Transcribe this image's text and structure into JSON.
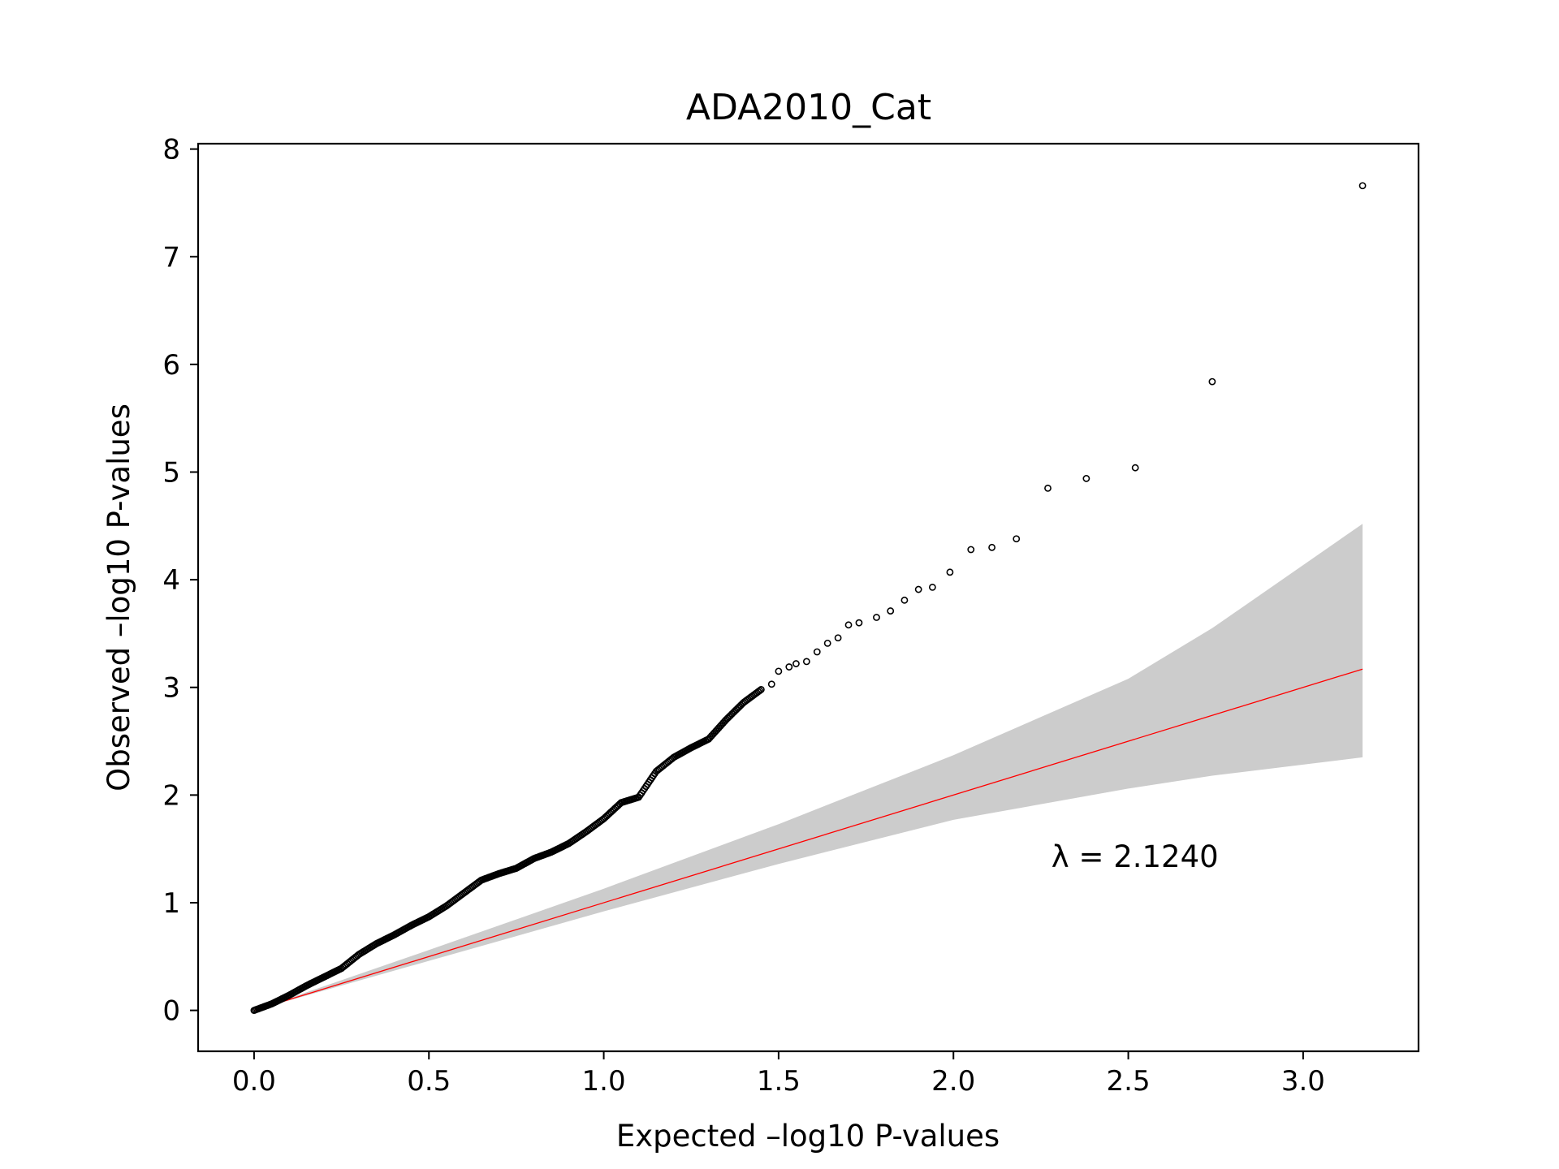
{
  "chart_data": {
    "type": "scatter",
    "title": "ADA2010_Cat",
    "xlabel": "Expected –log10 P-values",
    "ylabel": "Observed –log10 P-values",
    "xlim": [
      -0.16,
      3.33
    ],
    "ylim": [
      -0.38,
      8.05
    ],
    "xticks": [
      0.0,
      0.5,
      1.0,
      1.5,
      2.0,
      2.5,
      3.0
    ],
    "xtick_labels": [
      "0.0",
      "0.5",
      "1.0",
      "1.5",
      "2.0",
      "2.5",
      "3.0"
    ],
    "yticks": [
      0,
      1,
      2,
      3,
      4,
      5,
      6,
      7,
      8
    ],
    "ytick_labels": [
      "0",
      "1",
      "2",
      "3",
      "4",
      "5",
      "6",
      "7",
      "8"
    ],
    "grid": false,
    "annotation": "λ = 2.1240",
    "annotation_position": {
      "x": 2.28,
      "y": 1.33
    },
    "reference_line": {
      "x": [
        0.0,
        3.17
      ],
      "y": [
        0.0,
        3.17
      ],
      "color": "#ff0000"
    },
    "confidence_band": {
      "color": "#cccccc",
      "x": [
        0.0,
        0.5,
        1.0,
        1.5,
        2.0,
        2.5,
        2.74,
        3.17
      ],
      "upper": [
        0.0,
        0.56,
        1.13,
        1.73,
        2.37,
        3.08,
        3.55,
        4.52
      ],
      "lower": [
        0.0,
        0.46,
        0.92,
        1.36,
        1.77,
        2.06,
        2.18,
        2.35
      ]
    },
    "points_curve": {
      "x": [
        0.0,
        0.05,
        0.1,
        0.15,
        0.2,
        0.25,
        0.3,
        0.35,
        0.4,
        0.45,
        0.5,
        0.55,
        0.6,
        0.65,
        0.7,
        0.75,
        0.8,
        0.85,
        0.9,
        0.95,
        1.0,
        1.05,
        1.1,
        1.15,
        1.2,
        1.25,
        1.3,
        1.35,
        1.4,
        1.45
      ],
      "y": [
        0.0,
        0.06,
        0.14,
        0.23,
        0.31,
        0.39,
        0.52,
        0.62,
        0.7,
        0.79,
        0.87,
        0.97,
        1.09,
        1.21,
        1.27,
        1.32,
        1.41,
        1.47,
        1.55,
        1.66,
        1.78,
        1.93,
        1.98,
        2.22,
        2.35,
        2.44,
        2.52,
        2.7,
        2.86,
        2.98
      ]
    },
    "points_sparse": {
      "x": [
        1.48,
        1.5,
        1.53,
        1.55,
        1.58,
        1.61,
        1.64,
        1.67,
        1.7,
        1.73,
        1.78,
        1.82,
        1.86,
        1.9,
        1.94,
        1.99,
        2.05,
        2.11,
        2.18,
        2.27,
        2.38,
        2.52,
        2.74,
        3.17
      ],
      "y": [
        3.03,
        3.15,
        3.19,
        3.22,
        3.24,
        3.33,
        3.41,
        3.46,
        3.58,
        3.6,
        3.65,
        3.71,
        3.81,
        3.91,
        3.93,
        4.07,
        4.28,
        4.3,
        4.38,
        4.85,
        4.94,
        5.04,
        5.84,
        7.66
      ]
    }
  }
}
